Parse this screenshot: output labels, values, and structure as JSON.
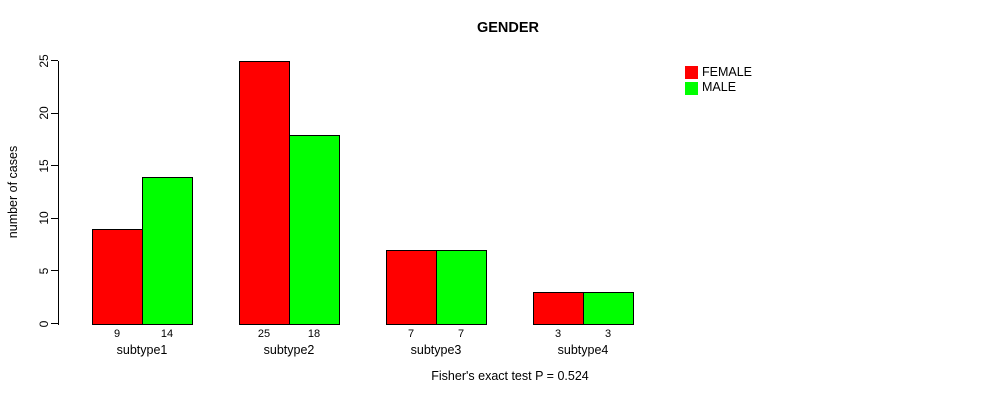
{
  "chart_data": {
    "type": "bar",
    "title": "GENDER",
    "ylabel": "number of cases",
    "xlabel": "",
    "annotation": "Fisher's exact test P = 0.524",
    "categories": [
      "subtype1",
      "subtype2",
      "subtype3",
      "subtype4"
    ],
    "series": [
      {
        "name": "FEMALE",
        "color": "#FF0000",
        "values": [
          9,
          25,
          7,
          3
        ]
      },
      {
        "name": "MALE",
        "color": "#00FF00",
        "values": [
          14,
          18,
          7,
          3
        ]
      }
    ],
    "yticks": [
      0,
      5,
      10,
      15,
      20,
      25
    ],
    "ylim": [
      0,
      25
    ],
    "grid": false,
    "show_bar_values": true,
    "legend_position": "top-right"
  },
  "colors": {
    "background": "#FFFFFF",
    "axis": "#000000",
    "text": "#000000",
    "bar_border": "#000000",
    "female": "#FF0000",
    "male": "#00FF00"
  }
}
